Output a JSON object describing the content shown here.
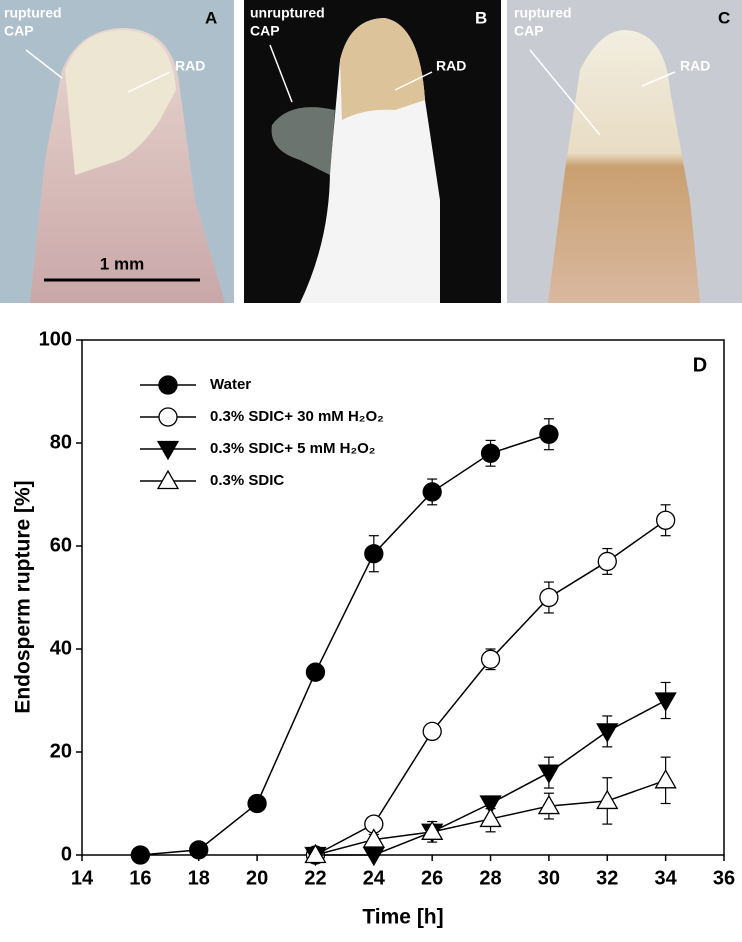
{
  "photos": [
    {
      "letter": "A",
      "cap_label": [
        "ruptured",
        "CAP"
      ],
      "rad_label": "RAD",
      "scale_label": "1 mm"
    },
    {
      "letter": "B",
      "cap_label": [
        "unruptured",
        "CAP"
      ],
      "rad_label": "RAD"
    },
    {
      "letter": "C",
      "cap_label": [
        "ruptured",
        "CAP"
      ],
      "rad_label": "RAD"
    }
  ],
  "chart_data": {
    "type": "line",
    "panel_label": "D",
    "xlabel": "Time [h]",
    "ylabel": "Endosperm rupture [%]",
    "x": [
      16,
      18,
      20,
      22,
      24,
      26,
      28,
      30,
      32,
      34
    ],
    "xlim": [
      14,
      36
    ],
    "xticks": [
      14,
      16,
      18,
      20,
      22,
      24,
      26,
      28,
      30,
      32,
      34,
      36
    ],
    "ylim": [
      0,
      100
    ],
    "yticks": [
      0,
      20,
      40,
      60,
      80,
      100
    ],
    "legend": "upper left",
    "series": [
      {
        "name": "Water",
        "color": "#000000",
        "marker": "circle",
        "filled": true,
        "values": [
          0,
          1,
          10,
          35.5,
          58.5,
          70.5,
          78,
          81.7,
          null,
          null
        ],
        "errors": [
          0,
          0.5,
          0.5,
          1.5,
          3.5,
          2.5,
          2.5,
          3,
          null,
          null
        ]
      },
      {
        "name": "0.3% SDIC+ 30 mM H₂O₂",
        "color": "#000000",
        "marker": "circle",
        "filled": false,
        "values": [
          null,
          null,
          null,
          0,
          6,
          24,
          38,
          50,
          57,
          65
        ],
        "errors": [
          null,
          null,
          null,
          0,
          0.5,
          0.5,
          2,
          3,
          2.5,
          3
        ]
      },
      {
        "name": "0.3% SDIC+ 5 mM H₂O₂",
        "color": "#000000",
        "marker": "triangle-down",
        "filled": true,
        "values": [
          null,
          null,
          null,
          0,
          0,
          4.5,
          10,
          16,
          24,
          30
        ],
        "errors": [
          null,
          null,
          null,
          0,
          0,
          1,
          1,
          3,
          3,
          3.5
        ]
      },
      {
        "name": "0.3% SDIC",
        "color": "#000000",
        "marker": "triangle-up",
        "filled": false,
        "values": [
          null,
          null,
          null,
          0,
          3,
          4.5,
          7,
          9.5,
          10.5,
          14.5
        ],
        "errors": [
          null,
          null,
          null,
          0,
          1,
          2,
          2.5,
          2.5,
          4.5,
          4.5
        ]
      }
    ]
  }
}
